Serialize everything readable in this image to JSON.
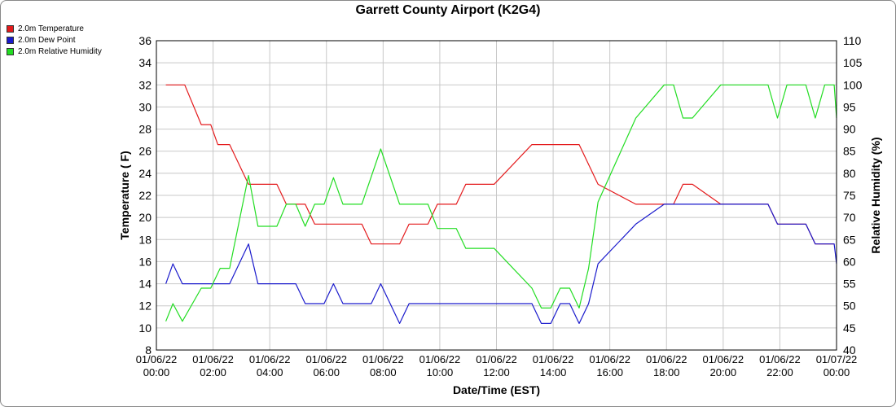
{
  "chart_data": {
    "type": "line",
    "title": "Garrett County Airport (K2G4)",
    "xlabel": "Date/Time (EST)",
    "ylabel": "Temperature ( F)",
    "y2label": "Relative Humidity (%)",
    "ylim": [
      8,
      36
    ],
    "y2lim": [
      40,
      110
    ],
    "grid": true,
    "legend_position": "top-left",
    "x_ticks": [
      {
        "line1": "01/06/22",
        "line2": "00:00"
      },
      {
        "line1": "01/06/22",
        "line2": "02:00"
      },
      {
        "line1": "01/06/22",
        "line2": "04:00"
      },
      {
        "line1": "01/06/22",
        "line2": "06:00"
      },
      {
        "line1": "01/06/22",
        "line2": "08:00"
      },
      {
        "line1": "01/06/22",
        "line2": "10:00"
      },
      {
        "line1": "01/06/22",
        "line2": "12:00"
      },
      {
        "line1": "01/06/22",
        "line2": "14:00"
      },
      {
        "line1": "01/06/22",
        "line2": "16:00"
      },
      {
        "line1": "01/06/22",
        "line2": "18:00"
      },
      {
        "line1": "01/06/22",
        "line2": "20:00"
      },
      {
        "line1": "01/06/22",
        "line2": "22:00"
      },
      {
        "line1": "01/07/22",
        "line2": "00:00"
      }
    ],
    "y_ticks": [
      8,
      10,
      12,
      14,
      16,
      18,
      20,
      22,
      24,
      26,
      28,
      30,
      32,
      34,
      36
    ],
    "y2_ticks": [
      40,
      45,
      50,
      55,
      60,
      65,
      70,
      75,
      80,
      85,
      90,
      95,
      100,
      105,
      110
    ],
    "series": [
      {
        "name": "2.0m Temperature",
        "color": "#e41a1c",
        "axis": "left",
        "points": [
          [
            "01/06/22 00:20",
            32.0
          ],
          [
            "01/06/22 01:00",
            32.0
          ],
          [
            "01/06/22 01:35",
            28.4
          ],
          [
            "01/06/22 01:55",
            28.4
          ],
          [
            "01/06/22 02:10",
            26.6
          ],
          [
            "01/06/22 02:35",
            26.6
          ],
          [
            "01/06/22 03:15",
            23.0
          ],
          [
            "01/06/22 04:15",
            23.0
          ],
          [
            "01/06/22 04:35",
            21.2
          ],
          [
            "01/06/22 05:15",
            21.2
          ],
          [
            "01/06/22 05:35",
            19.4
          ],
          [
            "01/06/22 07:15",
            19.4
          ],
          [
            "01/06/22 07:35",
            17.6
          ],
          [
            "01/06/22 08:35",
            17.6
          ],
          [
            "01/06/22 08:55",
            19.4
          ],
          [
            "01/06/22 09:35",
            19.4
          ],
          [
            "01/06/22 09:55",
            21.2
          ],
          [
            "01/06/22 10:35",
            21.2
          ],
          [
            "01/06/22 10:55",
            23.0
          ],
          [
            "01/06/22 11:55",
            23.0
          ],
          [
            "01/06/22 13:15",
            26.6
          ],
          [
            "01/06/22 14:55",
            26.6
          ],
          [
            "01/06/22 15:35",
            23.0
          ],
          [
            "01/06/22 16:55",
            21.2
          ],
          [
            "01/06/22 18:15",
            21.2
          ],
          [
            "01/06/22 18:35",
            23.0
          ],
          [
            "01/06/22 18:55",
            23.0
          ],
          [
            "01/06/22 19:55",
            21.2
          ],
          [
            "01/06/22 21:35",
            21.2
          ],
          [
            "01/06/22 21:55",
            19.4
          ],
          [
            "01/06/22 22:55",
            19.4
          ],
          [
            "01/06/22 23:15",
            17.6
          ],
          [
            "01/06/22 23:55",
            17.6
          ]
        ]
      },
      {
        "name": "2.0m Dew Point",
        "color": "#1a1acc",
        "axis": "left",
        "points": [
          [
            "01/06/22 00:20",
            14.0
          ],
          [
            "01/06/22 00:35",
            15.8
          ],
          [
            "01/06/22 00:55",
            14.0
          ],
          [
            "01/06/22 02:35",
            14.0
          ],
          [
            "01/06/22 03:15",
            17.6
          ],
          [
            "01/06/22 03:35",
            14.0
          ],
          [
            "01/06/22 04:55",
            14.0
          ],
          [
            "01/06/22 05:15",
            12.2
          ],
          [
            "01/06/22 05:55",
            12.2
          ],
          [
            "01/06/22 06:15",
            14.0
          ],
          [
            "01/06/22 06:35",
            12.2
          ],
          [
            "01/06/22 07:35",
            12.2
          ],
          [
            "01/06/22 07:55",
            14.0
          ],
          [
            "01/06/22 08:35",
            10.4
          ],
          [
            "01/06/22 08:55",
            12.2
          ],
          [
            "01/06/22 13:15",
            12.2
          ],
          [
            "01/06/22 13:35",
            10.4
          ],
          [
            "01/06/22 13:55",
            10.4
          ],
          [
            "01/06/22 14:15",
            12.2
          ],
          [
            "01/06/22 14:35",
            12.2
          ],
          [
            "01/06/22 14:55",
            10.4
          ],
          [
            "01/06/22 15:15",
            12.2
          ],
          [
            "01/06/22 15:35",
            15.8
          ],
          [
            "01/06/22 16:55",
            19.4
          ],
          [
            "01/06/22 17:55",
            21.2
          ],
          [
            "01/06/22 21:35",
            21.2
          ],
          [
            "01/06/22 21:55",
            19.4
          ],
          [
            "01/06/22 22:55",
            19.4
          ],
          [
            "01/06/22 23:15",
            17.6
          ],
          [
            "01/06/22 23:55",
            17.6
          ],
          [
            "01/07/22 00:00",
            15.8
          ]
        ]
      },
      {
        "name": "2.0m Relative Humidity",
        "color": "#22dd22",
        "axis": "right",
        "points": [
          [
            "01/06/22 00:20",
            46.5
          ],
          [
            "01/06/22 00:35",
            50.5
          ],
          [
            "01/06/22 00:55",
            46.5
          ],
          [
            "01/06/22 01:35",
            54.0
          ],
          [
            "01/06/22 01:55",
            54.0
          ],
          [
            "01/06/22 02:15",
            58.5
          ],
          [
            "01/06/22 02:35",
            58.5
          ],
          [
            "01/06/22 03:15",
            79.5
          ],
          [
            "01/06/22 03:35",
            68.0
          ],
          [
            "01/06/22 04:15",
            68.0
          ],
          [
            "01/06/22 04:35",
            73.0
          ],
          [
            "01/06/22 04:55",
            73.0
          ],
          [
            "01/06/22 05:15",
            68.0
          ],
          [
            "01/06/22 05:35",
            73.0
          ],
          [
            "01/06/22 05:55",
            73.0
          ],
          [
            "01/06/22 06:15",
            79.0
          ],
          [
            "01/06/22 06:35",
            73.0
          ],
          [
            "01/06/22 07:15",
            73.0
          ],
          [
            "01/06/22 07:55",
            85.5
          ],
          [
            "01/06/22 08:35",
            73.0
          ],
          [
            "01/06/22 09:35",
            73.0
          ],
          [
            "01/06/22 09:55",
            67.5
          ],
          [
            "01/06/22 10:35",
            67.5
          ],
          [
            "01/06/22 10:55",
            63.0
          ],
          [
            "01/06/22 11:55",
            63.0
          ],
          [
            "01/06/22 13:15",
            54.0
          ],
          [
            "01/06/22 13:35",
            49.5
          ],
          [
            "01/06/22 13:55",
            49.5
          ],
          [
            "01/06/22 14:15",
            54.0
          ],
          [
            "01/06/22 14:35",
            54.0
          ],
          [
            "01/06/22 14:55",
            49.5
          ],
          [
            "01/06/22 15:15",
            58.5
          ],
          [
            "01/06/22 15:35",
            73.5
          ],
          [
            "01/06/22 16:55",
            92.5
          ],
          [
            "01/06/22 17:55",
            100.0
          ],
          [
            "01/06/22 18:15",
            100.0
          ],
          [
            "01/06/22 18:35",
            92.5
          ],
          [
            "01/06/22 18:55",
            92.5
          ],
          [
            "01/06/22 19:55",
            100.0
          ],
          [
            "01/06/22 21:35",
            100.0
          ],
          [
            "01/06/22 21:55",
            92.5
          ],
          [
            "01/06/22 22:15",
            100.0
          ],
          [
            "01/06/22 22:55",
            100.0
          ],
          [
            "01/06/22 23:15",
            92.5
          ],
          [
            "01/06/22 23:35",
            100.0
          ],
          [
            "01/06/22 23:55",
            100.0
          ],
          [
            "01/07/22 00:00",
            92.5
          ]
        ]
      }
    ]
  }
}
